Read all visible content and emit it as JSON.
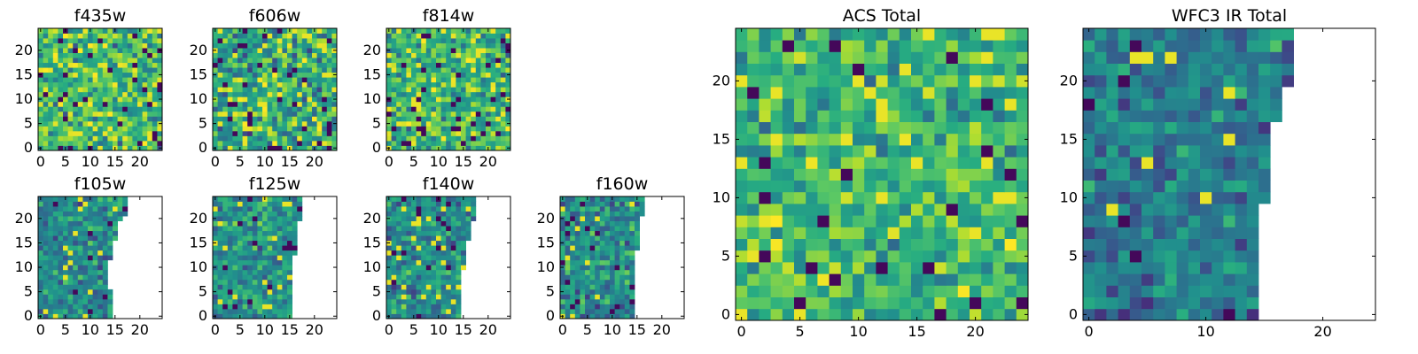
{
  "chart_data": {
    "type": "heatmap",
    "colormap": "viridis",
    "panels": [
      {
        "title": "f435w",
        "xticks": [
          "0",
          "5",
          "10",
          "15",
          "20"
        ],
        "yticks": [
          "0",
          "5",
          "10",
          "15",
          "20"
        ],
        "extent": [
          0,
          25
        ],
        "coverage": "full",
        "edge_rows": [],
        "seed": 11,
        "center": 0.68,
        "spread": 0.2,
        "rare_dark": 0.05
      },
      {
        "title": "f606w",
        "xticks": [
          "0",
          "5",
          "10",
          "15",
          "20"
        ],
        "yticks": [
          "0",
          "5",
          "10",
          "15",
          "20"
        ],
        "extent": [
          0,
          25
        ],
        "coverage": "full",
        "edge_rows": [],
        "seed": 23,
        "center": 0.62,
        "spread": 0.22,
        "rare_dark": 0.07
      },
      {
        "title": "f814w",
        "xticks": [
          "0",
          "5",
          "10",
          "15",
          "20"
        ],
        "yticks": [
          "0",
          "5",
          "10",
          "15",
          "20"
        ],
        "extent": [
          0,
          25
        ],
        "coverage": "full",
        "edge_rows": [],
        "seed": 37,
        "center": 0.66,
        "spread": 0.2,
        "rare_dark": 0.06
      },
      {
        "title": "f105w",
        "xticks": [
          "0",
          "5",
          "10",
          "15",
          "20"
        ],
        "yticks": [
          "0",
          "5",
          "10",
          "15",
          "20"
        ],
        "extent": [
          0,
          25
        ],
        "coverage": "partial",
        "edge_rows": [
          15,
          15,
          15,
          15,
          15,
          15,
          14,
          14,
          14,
          14,
          14,
          14,
          15,
          15,
          15,
          15,
          16,
          16,
          16,
          16,
          17,
          18,
          18,
          18,
          18
        ],
        "seed": 41,
        "center": 0.47,
        "spread": 0.14,
        "rare_dark": 0.04
      },
      {
        "title": "f125w",
        "xticks": [
          "0",
          "5",
          "10",
          "15",
          "20"
        ],
        "yticks": [
          "0",
          "5",
          "10",
          "15",
          "20"
        ],
        "extent": [
          0,
          25
        ],
        "coverage": "partial",
        "edge_rows": [
          16,
          16,
          16,
          16,
          16,
          16,
          16,
          16,
          16,
          16,
          16,
          16,
          16,
          17,
          17,
          17,
          17,
          17,
          17,
          17,
          18,
          18,
          18,
          18,
          18
        ],
        "seed": 53,
        "center": 0.52,
        "spread": 0.15,
        "rare_dark": 0.04
      },
      {
        "title": "f140w",
        "xticks": [
          "0",
          "5",
          "10",
          "15",
          "20"
        ],
        "yticks": [
          "0",
          "5",
          "10",
          "15",
          "20"
        ],
        "extent": [
          0,
          25
        ],
        "coverage": "partial",
        "edge_rows": [
          15,
          15,
          15,
          15,
          15,
          15,
          15,
          15,
          15,
          15,
          16,
          16,
          16,
          16,
          16,
          16,
          17,
          17,
          17,
          17,
          18,
          18,
          18,
          18,
          18
        ],
        "seed": 67,
        "center": 0.5,
        "spread": 0.15,
        "rare_dark": 0.04
      },
      {
        "title": "f160w",
        "xticks": [
          "0",
          "5",
          "10",
          "15",
          "20"
        ],
        "yticks": [
          "0",
          "5",
          "10",
          "15",
          "20"
        ],
        "extent": [
          0,
          25
        ],
        "coverage": "partial",
        "edge_rows": [
          15,
          15,
          15,
          15,
          15,
          15,
          15,
          15,
          15,
          15,
          15,
          15,
          15,
          15,
          16,
          16,
          16,
          16,
          16,
          16,
          16,
          17,
          17,
          17,
          17
        ],
        "seed": 79,
        "center": 0.5,
        "spread": 0.17,
        "rare_dark": 0.05
      },
      {
        "title": "ACS Total",
        "xticks": [
          "0",
          "5",
          "10",
          "15",
          "20"
        ],
        "yticks": [
          "0",
          "5",
          "10",
          "15",
          "20"
        ],
        "extent": [
          0,
          25
        ],
        "coverage": "full",
        "edge_rows": [],
        "seed": 97,
        "center": 0.66,
        "spread": 0.18,
        "rare_dark": 0.04
      },
      {
        "title": "WFC3 IR Total",
        "xticks": [
          "0",
          "10",
          "20"
        ],
        "yticks": [
          "0",
          "5",
          "10",
          "15",
          "20"
        ],
        "extent": [
          0,
          25
        ],
        "coverage": "partial",
        "edge_rows": [
          15,
          15,
          15,
          15,
          15,
          15,
          15,
          15,
          15,
          15,
          16,
          16,
          16,
          16,
          16,
          16,
          16,
          17,
          17,
          17,
          18,
          18,
          18,
          18,
          18
        ],
        "seed": 113,
        "center": 0.42,
        "spread": 0.14,
        "rare_dark": 0.03
      }
    ]
  }
}
